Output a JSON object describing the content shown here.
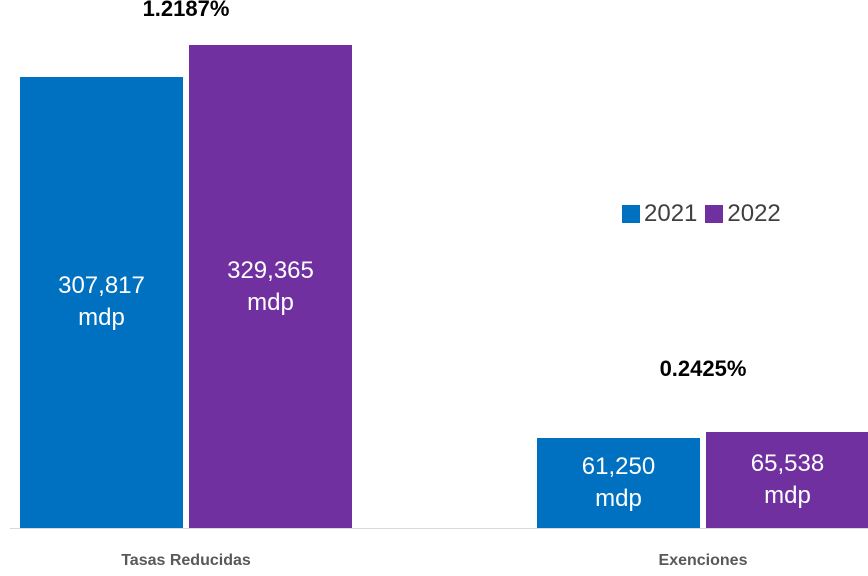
{
  "chart_data": {
    "type": "bar",
    "categories": [
      "Tasas Reducidas",
      "Exenciones"
    ],
    "series": [
      {
        "name": "2021",
        "color": "#0070c0",
        "values": [
          307817,
          61250
        ],
        "value_labels": [
          "307,817 mdp",
          "61,250 mdp"
        ]
      },
      {
        "name": "2022",
        "color": "#7030a0",
        "values": [
          329365,
          65538
        ],
        "value_labels": [
          "329,365 mdp",
          "65,538 mdp"
        ]
      }
    ],
    "annotations": [
      "1.2187%",
      "0.2425%"
    ],
    "legend": "right"
  }
}
